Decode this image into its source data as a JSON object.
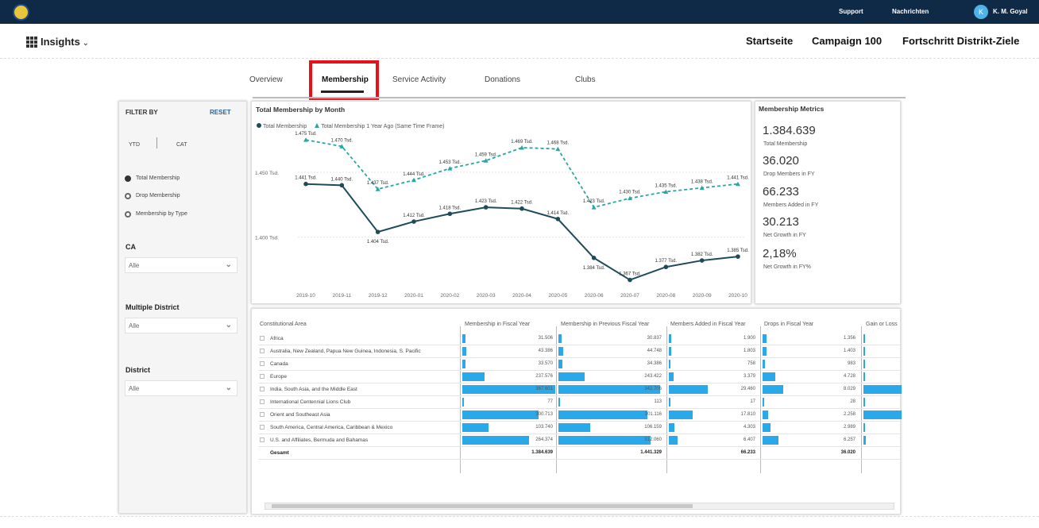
{
  "topbar": {
    "support": "Support",
    "news": "Nachrichten",
    "user": "K. M. Goyal",
    "avatar": "K"
  },
  "header": {
    "brand": "Insights",
    "nav": [
      "Startseite",
      "Campaign 100",
      "Fortschritt Distrikt-Ziele"
    ]
  },
  "tabs": [
    "Overview",
    "Membership",
    "Service Activity",
    "Donations",
    "Clubs"
  ],
  "active_tab": "Membership",
  "filter": {
    "title": "FILTER BY",
    "reset": "RESET",
    "ytd": "YTD",
    "cat": "CAT",
    "radios": [
      "Total Membership",
      "Drop Membership",
      "Membership by Type"
    ],
    "ca_label": "CA",
    "ca_value": "Alle",
    "md_label": "Multiple District",
    "md_value": "Alle",
    "district_label": "District",
    "district_value": "Alle"
  },
  "chart": {
    "title": "Total Membership by Month",
    "legend1": "Total Membership",
    "legend2": "Total Membership 1 Year Ago (Same Time Frame)"
  },
  "chart_data": {
    "type": "line",
    "title": "Total Membership by Month",
    "x": [
      "2019-10",
      "2019-11",
      "2019-12",
      "2020-01",
      "2020-02",
      "2020-03",
      "2020-04",
      "2020-05",
      "2020-06",
      "2020-07",
      "2020-08",
      "2020-09",
      "2020-10"
    ],
    "series": [
      {
        "name": "Total Membership",
        "values": [
          1441,
          1440,
          1404,
          1412,
          1418,
          1423,
          1422,
          1414,
          1384,
          1367,
          1377,
          1382,
          1385
        ],
        "labels": [
          "1.441 Tsd.",
          "1.440 Tsd.",
          "1.404 Tsd.",
          "1.412 Tsd.",
          "1.418 Tsd.",
          "1.423 Tsd.",
          "1.422 Tsd.",
          "1.414 Tsd.",
          "1.384 Tsd.",
          "1.367 Tsd.",
          "1.377 Tsd.",
          "1.382 Tsd.",
          "1.385 Tsd."
        ],
        "color": "#1e4b5c"
      },
      {
        "name": "Total Membership 1 Year Ago (Same Time Frame)",
        "values": [
          1475,
          1470,
          1437,
          1444,
          1453,
          1459,
          1469,
          1468,
          1423,
          1430,
          1435,
          1438,
          1441
        ],
        "labels": [
          "1.475 Tsd.",
          "1.470 Tsd.",
          "1.437 Tsd.",
          "1.444 Tsd.",
          "1.453 Tsd.",
          "1.459 Tsd.",
          "1.469 Tsd.",
          "1.468 Tsd.",
          "1.423 Tsd.",
          "1.430 Tsd.",
          "1.435 Tsd.",
          "1.438 Tsd.",
          "1.441 Tsd."
        ],
        "color": "#2aa7a5"
      }
    ],
    "yticks": [
      "1.450 Tsd.",
      "1.400 Tsd."
    ],
    "ylim": [
      1360,
      1480
    ]
  },
  "metrics": {
    "title": "Membership Metrics",
    "items": [
      {
        "value": "1.384.639",
        "label": "Total Membership"
      },
      {
        "value": "36.020",
        "label": "Drop Members in FY"
      },
      {
        "value": "66.233",
        "label": "Members Added in FY"
      },
      {
        "value": "30.213",
        "label": "Net Growth in FY"
      },
      {
        "value": "2,18%",
        "label": "Net Growth in FY%"
      }
    ]
  },
  "table": {
    "headers": [
      "Constitutional Area",
      "Membership in Fiscal Year",
      "Membership in Previous Fiscal Year",
      "Members Added in Fiscal Year",
      "Drops in Fiscal Year",
      "Gain or Loss"
    ],
    "rows": [
      {
        "area": "Africa",
        "m": "31.506",
        "mp": "30.837",
        "add": "1.900",
        "drop": "1.356",
        "fm": 0.032,
        "fmp": 0.031,
        "fadd": 0.028,
        "fdrop": 0.038,
        "fgl": 0.01
      },
      {
        "area": "Australia, New Zealand, Papua New Guinea, Indonesia, S. Pacific",
        "m": "43.386",
        "mp": "44.748",
        "add": "1.803",
        "drop": "1.403",
        "fm": 0.043,
        "fmp": 0.045,
        "fadd": 0.027,
        "fdrop": 0.039,
        "fgl": 0.01
      },
      {
        "area": "Canada",
        "m": "33.570",
        "mp": "34.386",
        "add": "758",
        "drop": "983",
        "fm": 0.034,
        "fmp": 0.035,
        "fadd": 0.011,
        "fdrop": 0.027,
        "fgl": 0.01
      },
      {
        "area": "Europe",
        "m": "237.576",
        "mp": "243.422",
        "add": "3.379",
        "drop": "4.728",
        "fm": 0.24,
        "fmp": 0.25,
        "fadd": 0.051,
        "fdrop": 0.13,
        "fgl": 0.02
      },
      {
        "area": "India, South Asia, and the Middle East",
        "m": "367.601",
        "mp": "342.706",
        "add": "29.460",
        "drop": "8.029",
        "fm": 1.0,
        "fmp": 0.96,
        "fadd": 0.44,
        "fdrop": 0.22,
        "fgl": 1.0
      },
      {
        "area": "International Centennial Lions Club",
        "m": "77",
        "mp": "113",
        "add": "17",
        "drop": "28",
        "fm": 0.001,
        "fmp": 0.001,
        "fadd": 0.001,
        "fdrop": 0.001,
        "fgl": 0.001
      },
      {
        "area": "Orient and Southeast Asia",
        "m": "300.713",
        "mp": "301.116",
        "add": "17.810",
        "drop": "2.258",
        "fm": 0.82,
        "fmp": 0.84,
        "fadd": 0.27,
        "fdrop": 0.06,
        "fgl": 1.0
      },
      {
        "area": "South America, Central America, Caribbean & Mexico",
        "m": "103.740",
        "mp": "106.159",
        "add": "4.303",
        "drop": "2.989",
        "fm": 0.28,
        "fmp": 0.3,
        "fadd": 0.065,
        "fdrop": 0.08,
        "fgl": 0.02
      },
      {
        "area": "U.S. and Affiliates, Bermuda and Bahamas",
        "m": "264.374",
        "mp": "312.060",
        "add": "6.407",
        "drop": "6.257",
        "fm": 0.72,
        "fmp": 0.87,
        "fadd": 0.1,
        "fdrop": 0.17,
        "fgl": 0.05
      }
    ],
    "total": {
      "area": "Gesamt",
      "m": "1.384.639",
      "mp": "1.441.329",
      "add": "66.233",
      "drop": "36.020"
    }
  }
}
